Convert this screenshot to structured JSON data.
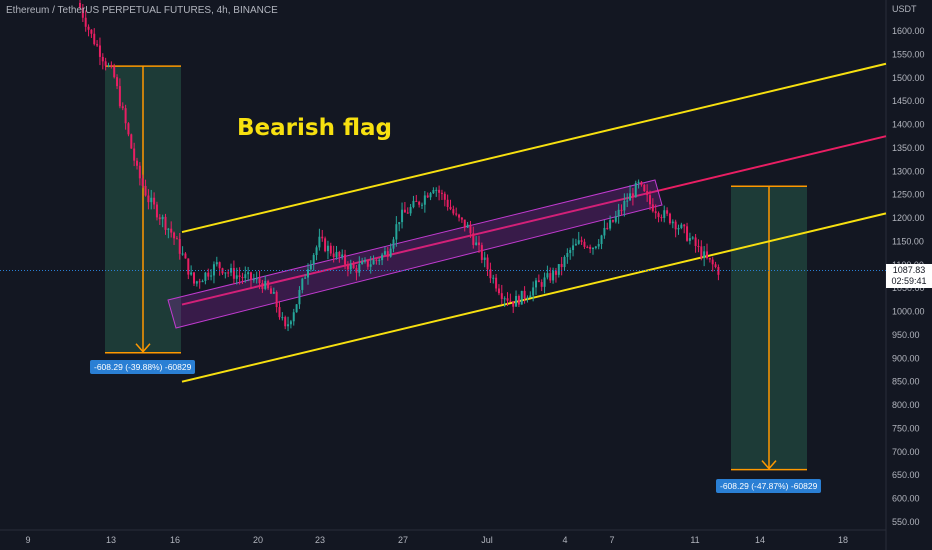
{
  "header": {
    "title": "Ethereum / TetherUS PERPETUAL FUTURES, 4h, BINANCE"
  },
  "annotation": {
    "text": "Bearish flag",
    "color": "#f7e010"
  },
  "price_tag": {
    "price": "1087.83",
    "countdown": "02:59:41"
  },
  "colors": {
    "up": "#26a69a",
    "down": "#e91e63",
    "channel": "#f7e010",
    "midline": "#e91e63",
    "measure_fill": "#1f3f3a",
    "measure_line": "#ff9800",
    "background": "#131722"
  },
  "measures": [
    {
      "label": "-608.29 (-39.88%) -60829"
    },
    {
      "label": "-608.29 (-47.87%) -60829"
    }
  ],
  "chart_data": {
    "type": "candlestick",
    "title": "Ethereum / TetherUS PERPETUAL FUTURES, 4h, BINANCE",
    "ylabel": "USDT",
    "ylim": [
      540,
      1660
    ],
    "y_ticks": [
      550,
      600,
      650,
      700,
      750,
      800,
      850,
      900,
      950,
      1000,
      1050,
      1100,
      1150,
      1200,
      1250,
      1300,
      1350,
      1400,
      1450,
      1500,
      1550,
      1600
    ],
    "x_ticks": [
      "9",
      "13",
      "16",
      "20",
      "23",
      "27",
      "Jul",
      "4",
      "7",
      "11",
      "14",
      "18"
    ],
    "close_path": [
      [
        0,
        1650
      ],
      [
        4,
        1590
      ],
      [
        8,
        1545
      ],
      [
        12,
        1500
      ],
      [
        16,
        1400
      ],
      [
        20,
        1300
      ],
      [
        24,
        1240
      ],
      [
        28,
        1205
      ],
      [
        32,
        1170
      ],
      [
        36,
        1120
      ],
      [
        40,
        1060
      ],
      [
        44,
        1080
      ],
      [
        48,
        1100
      ],
      [
        52,
        1085
      ],
      [
        56,
        1075
      ],
      [
        60,
        1070
      ],
      [
        64,
        1060
      ],
      [
        68,
        1030
      ],
      [
        72,
        960
      ],
      [
        76,
        1020
      ],
      [
        80,
        1100
      ],
      [
        84,
        1150
      ],
      [
        88,
        1130
      ],
      [
        92,
        1110
      ],
      [
        96,
        1090
      ],
      [
        100,
        1100
      ],
      [
        104,
        1110
      ],
      [
        108,
        1130
      ],
      [
        112,
        1200
      ],
      [
        116,
        1220
      ],
      [
        120,
        1240
      ],
      [
        124,
        1270
      ],
      [
        128,
        1240
      ],
      [
        132,
        1200
      ],
      [
        136,
        1180
      ],
      [
        140,
        1130
      ],
      [
        144,
        1080
      ],
      [
        148,
        1040
      ],
      [
        152,
        1020
      ],
      [
        156,
        1035
      ],
      [
        160,
        1055
      ],
      [
        164,
        1070
      ],
      [
        168,
        1090
      ],
      [
        172,
        1130
      ],
      [
        176,
        1150
      ],
      [
        180,
        1140
      ],
      [
        184,
        1170
      ],
      [
        188,
        1200
      ],
      [
        192,
        1240
      ],
      [
        196,
        1270
      ],
      [
        200,
        1230
      ],
      [
        204,
        1210
      ],
      [
        208,
        1195
      ],
      [
        212,
        1170
      ],
      [
        216,
        1140
      ],
      [
        220,
        1110
      ],
      [
        224,
        1088
      ]
    ],
    "upper_channel": [
      [
        1,
        1170
      ],
      [
        6,
        1530
      ]
    ],
    "mid_line": [
      [
        1,
        1015
      ],
      [
        6,
        1375
      ]
    ],
    "lower_channel": [
      [
        1,
        850
      ],
      [
        6,
        1210
      ]
    ],
    "flag_zone": {
      "low": 1020,
      "high": 1295
    },
    "measured_moves": [
      {
        "from": 1525,
        "to": 912,
        "change": "-608.29 (-39.88%) -60829"
      },
      {
        "from": 1268,
        "to": 662,
        "change": "-608.29 (-47.87%) -60829"
      }
    ],
    "last_price": 1087.83,
    "grid": false,
    "legend": "none"
  }
}
